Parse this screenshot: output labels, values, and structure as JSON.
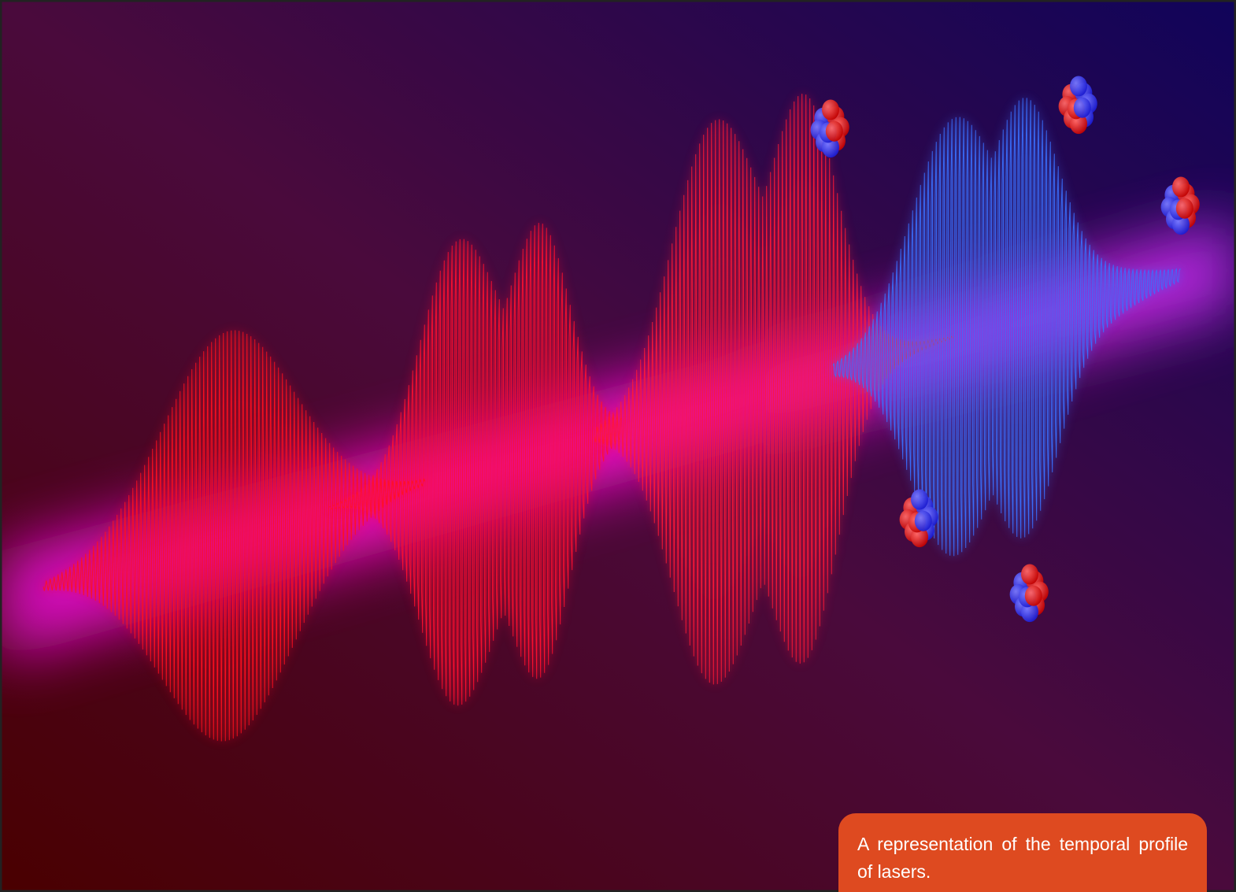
{
  "caption": "A representation of the temporal profile of lasers."
}
